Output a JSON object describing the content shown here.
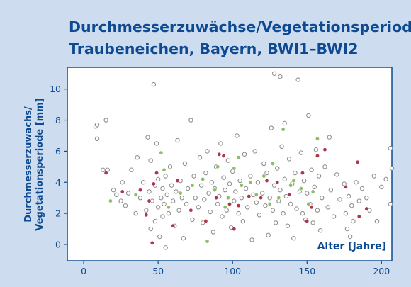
{
  "chart_data": {
    "type": "scatter",
    "title": [
      "Durchmesserzuwächse/Vegetationsperiode",
      "Traubeneichen, Bayern, BWI1–BWI2"
    ],
    "y_label": [
      "Durchmesserzuwachs/",
      "Vegetationsperiode [mm]"
    ],
    "x_label": "Alter [Jahre]",
    "xlim": [
      -11,
      207
    ],
    "ylim": [
      -1.05,
      11.4
    ],
    "xticks": [
      0,
      50,
      100,
      150,
      200
    ],
    "yticks": [
      0,
      2,
      4,
      6,
      8,
      10
    ],
    "series": [
      {
        "color": "#8a8a8a",
        "hollow": true,
        "x": [
          8,
          9,
          9,
          15,
          13,
          16,
          20,
          22,
          25,
          26,
          28,
          30,
          32,
          35,
          36,
          38,
          40,
          42,
          43,
          44,
          45,
          45,
          46,
          47,
          48,
          48,
          49,
          50,
          50,
          51,
          52,
          53,
          53,
          54,
          55,
          55,
          56,
          57,
          58,
          59,
          60,
          61,
          62,
          63,
          64,
          65,
          66,
          67,
          68,
          69,
          70,
          72,
          73,
          74,
          75,
          77,
          78,
          79,
          80,
          81,
          82,
          83,
          84,
          85,
          86,
          87,
          88,
          89,
          90,
          91,
          92,
          93,
          94,
          95,
          96,
          97,
          98,
          99,
          100,
          101,
          102,
          103,
          104,
          105,
          106,
          107,
          108,
          109,
          110,
          112,
          113,
          114,
          115,
          116,
          117,
          118,
          120,
          121,
          122,
          123,
          124,
          125,
          126,
          127,
          128,
          128,
          129,
          130,
          131,
          132,
          132,
          133,
          134,
          135,
          135,
          136,
          137,
          138,
          139,
          140,
          141,
          142,
          143,
          144,
          145,
          146,
          147,
          148,
          149,
          150,
          151,
          152,
          153,
          154,
          155,
          156,
          157,
          158,
          159,
          160,
          162,
          164,
          165,
          166,
          168,
          170,
          172,
          175,
          176,
          177,
          178,
          179,
          180,
          181,
          183,
          185,
          187,
          190,
          192,
          195,
          197,
          200,
          203,
          206,
          206,
          207
        ],
        "values": [
          7.6,
          7.7,
          6.8,
          8.0,
          4.8,
          4.8,
          3.5,
          3.2,
          2.8,
          4.0,
          2.5,
          3.3,
          4.8,
          2.0,
          5.6,
          3.0,
          4.0,
          2.2,
          6.9,
          3.4,
          1.0,
          5.4,
          2.8,
          10.3,
          3.8,
          1.5,
          6.5,
          2.4,
          4.2,
          0.5,
          3.0,
          3.6,
          1.8,
          2.6,
          4.4,
          -0.2,
          3.2,
          2.0,
          5.0,
          3.8,
          2.8,
          1.2,
          3.4,
          6.7,
          2.2,
          4.1,
          3.0,
          0.4,
          5.2,
          2.6,
          3.6,
          8.0,
          1.6,
          4.4,
          3.0,
          2.4,
          5.6,
          3.8,
          1.4,
          2.9,
          4.6,
          6.0,
          3.3,
          2.1,
          4.0,
          0.8,
          3.6,
          5.0,
          2.6,
          3.1,
          6.5,
          1.8,
          4.3,
          3.5,
          2.2,
          5.4,
          3.9,
          1.1,
          4.7,
          2.8,
          3.4,
          7.0,
          2.0,
          4.1,
          3.0,
          1.5,
          5.8,
          3.6,
          2.4,
          4.4,
          0.3,
          3.2,
          6.0,
          2.7,
          4.0,
          1.9,
          3.3,
          5.2,
          2.5,
          4.6,
          0.6,
          3.0,
          7.5,
          2.2,
          11.0,
          3.8,
          1.4,
          4.9,
          2.8,
          10.8,
          3.5,
          6.3,
          2.0,
          4.2,
          7.8,
          3.1,
          1.2,
          5.5,
          2.6,
          3.9,
          0.4,
          4.6,
          2.3,
          10.6,
          3.4,
          5.9,
          2.0,
          4.1,
          1.6,
          3.3,
          8.3,
          2.6,
          4.8,
          1.4,
          3.7,
          6.1,
          2.2,
          4.4,
          0.9,
          3.0,
          5.0,
          2.4,
          6.9,
          3.5,
          1.8,
          4.5,
          2.9,
          3.9,
          2.0,
          1.0,
          3.1,
          0.5,
          2.5,
          1.5,
          4.0,
          2.8,
          3.6,
          3.0,
          2.2,
          4.4,
          1.5,
          3.7,
          4.2,
          6.2,
          2.6,
          4.9
        ]
      },
      {
        "color": "#8dbf68",
        "hollow": false,
        "x": [
          18,
          35,
          52,
          54,
          57,
          65,
          73,
          80,
          83,
          88,
          90,
          95,
          97,
          101,
          104,
          106,
          112,
          116,
          121,
          125,
          127,
          131,
          134,
          139,
          141,
          146,
          151,
          154,
          157
        ],
        "values": [
          2.8,
          3.2,
          5.9,
          4.8,
          2.4,
          3.3,
          3.8,
          4.2,
          0.2,
          3.5,
          5.0,
          2.4,
          3.0,
          4.9,
          5.6,
          3.8,
          4.0,
          3.2,
          4.4,
          2.6,
          5.2,
          3.0,
          7.4,
          3.8,
          4.1,
          3.6,
          2.6,
          3.4,
          6.8
        ]
      },
      {
        "color": "#b1354a",
        "hollow": false,
        "x": [
          15,
          26,
          38,
          42,
          44,
          46,
          47,
          49,
          60,
          63,
          72,
          82,
          89,
          91,
          94,
          98,
          101,
          104,
          111,
          119,
          123,
          130,
          138,
          147,
          150,
          153,
          157,
          162,
          176,
          184,
          185,
          190
        ],
        "values": [
          4.6,
          3.4,
          3.5,
          1.9,
          2.8,
          0.1,
          3.9,
          4.6,
          1.2,
          4.1,
          2.2,
          1.5,
          3.0,
          5.8,
          5.7,
          2.6,
          1.0,
          2.5,
          3.1,
          3.0,
          4.1,
          4.0,
          3.2,
          4.6,
          1.5,
          2.4,
          5.7,
          6.1,
          3.7,
          5.3,
          1.8,
          2.3
        ]
      }
    ]
  }
}
